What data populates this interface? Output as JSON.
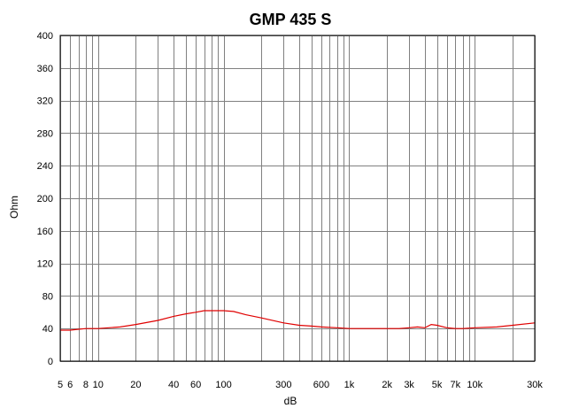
{
  "chart_data": {
    "type": "line",
    "title": "GMP 435 S",
    "xlabel": "dB",
    "ylabel": "Ohm",
    "x_scale": "log",
    "xlim": [
      5,
      30000
    ],
    "ylim": [
      0,
      400
    ],
    "grid": true,
    "x_ticks": [
      {
        "value": 5,
        "label": "5"
      },
      {
        "value": 6,
        "label": "6"
      },
      {
        "value": 8,
        "label": "8"
      },
      {
        "value": 10,
        "label": "10"
      },
      {
        "value": 20,
        "label": "20"
      },
      {
        "value": 40,
        "label": "40"
      },
      {
        "value": 60,
        "label": "60"
      },
      {
        "value": 100,
        "label": "100"
      },
      {
        "value": 300,
        "label": "300"
      },
      {
        "value": 600,
        "label": "600"
      },
      {
        "value": 1000,
        "label": "1k"
      },
      {
        "value": 2000,
        "label": "2k"
      },
      {
        "value": 3000,
        "label": "3k"
      },
      {
        "value": 5000,
        "label": "5k"
      },
      {
        "value": 7000,
        "label": "7k"
      },
      {
        "value": 10000,
        "label": "10k"
      },
      {
        "value": 30000,
        "label": "30k"
      }
    ],
    "y_ticks": [
      0,
      40,
      80,
      120,
      160,
      200,
      240,
      280,
      320,
      360,
      400
    ],
    "series": [
      {
        "color": "#e00000",
        "x": [
          5,
          6,
          8,
          10,
          15,
          20,
          30,
          40,
          50,
          60,
          70,
          80,
          100,
          120,
          150,
          200,
          300,
          400,
          500,
          600,
          800,
          1000,
          1500,
          2000,
          2500,
          3000,
          3500,
          4000,
          4500,
          5000,
          6000,
          7000,
          8000,
          10000,
          15000,
          20000,
          30000
        ],
        "y": [
          38,
          38,
          40,
          40,
          42,
          45,
          50,
          55,
          58,
          60,
          62,
          62,
          62,
          61,
          57,
          53,
          47,
          44,
          43,
          42,
          41,
          40,
          40,
          40,
          40,
          41,
          42,
          41,
          45,
          44,
          41,
          40,
          40,
          41,
          42,
          44,
          47
        ]
      }
    ]
  }
}
